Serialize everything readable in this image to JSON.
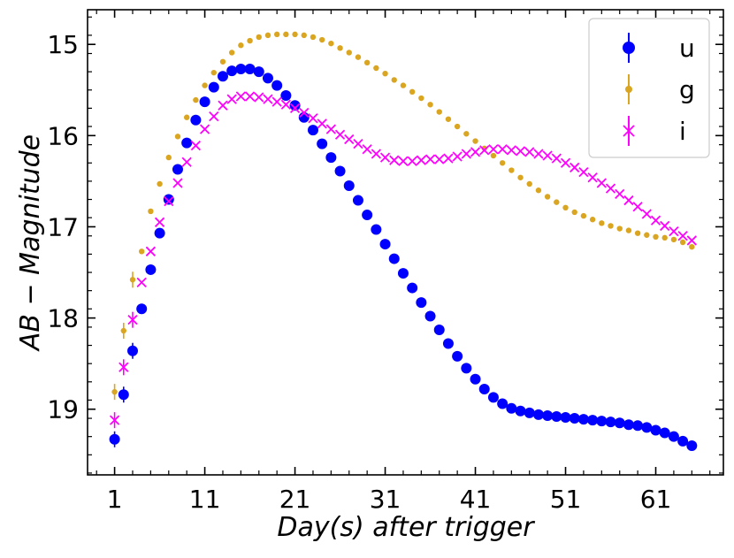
{
  "chart_data": {
    "type": "scatter",
    "xlabel": "Day(s) after trigger",
    "ylabel": "AB − Magnitude",
    "xlim": [
      -2.0,
      68.5
    ],
    "ylim": [
      19.72,
      14.62
    ],
    "y_inverted": true,
    "xticks": [
      1,
      11,
      21,
      31,
      41,
      51,
      61
    ],
    "xtick_labels": [
      "1",
      "11",
      "21",
      "31",
      "41",
      "51",
      "61"
    ],
    "yticks": [
      15,
      16,
      17,
      18,
      19
    ],
    "ytick_labels": [
      "15",
      "16",
      "17",
      "18",
      "19"
    ],
    "grid": false,
    "legend_position": "top-right",
    "series": [
      {
        "name": "u",
        "color": "#0000ff",
        "marker": "circle",
        "x": [
          1,
          2,
          3,
          4,
          5,
          6,
          7,
          8,
          9,
          10,
          11,
          12,
          13,
          14,
          15,
          16,
          17,
          18,
          19,
          20,
          21,
          22,
          23,
          24,
          25,
          26,
          27,
          28,
          29,
          30,
          31,
          32,
          33,
          34,
          35,
          36,
          37,
          38,
          39,
          40,
          41,
          42,
          43,
          44,
          45,
          46,
          47,
          48,
          49,
          50,
          51,
          52,
          53,
          54,
          55,
          56,
          57,
          58,
          59,
          60,
          61,
          62,
          63,
          64,
          65
        ],
        "y": [
          19.33,
          18.84,
          18.36,
          17.9,
          17.47,
          17.07,
          16.7,
          16.37,
          16.08,
          15.83,
          15.63,
          15.47,
          15.35,
          15.29,
          15.27,
          15.27,
          15.3,
          15.37,
          15.45,
          15.56,
          15.67,
          15.8,
          15.94,
          16.09,
          16.24,
          16.39,
          16.55,
          16.71,
          16.87,
          17.03,
          17.19,
          17.35,
          17.51,
          17.67,
          17.83,
          17.98,
          18.13,
          18.28,
          18.42,
          18.55,
          18.67,
          18.78,
          18.87,
          18.94,
          18.99,
          19.02,
          19.04,
          19.06,
          19.07,
          19.08,
          19.09,
          19.1,
          19.11,
          19.12,
          19.13,
          19.14,
          19.15,
          19.17,
          19.18,
          19.2,
          19.23,
          19.26,
          19.3,
          19.35,
          19.4
        ]
      },
      {
        "name": "g",
        "color": "#daa520",
        "marker": "small-circle",
        "x": [
          1,
          2,
          3,
          4,
          5,
          6,
          7,
          8,
          9,
          10,
          11,
          12,
          13,
          14,
          15,
          16,
          17,
          18,
          19,
          20,
          21,
          22,
          23,
          24,
          25,
          26,
          27,
          28,
          29,
          30,
          31,
          32,
          33,
          34,
          35,
          36,
          37,
          38,
          39,
          40,
          41,
          42,
          43,
          44,
          45,
          46,
          47,
          48,
          49,
          50,
          51,
          52,
          53,
          54,
          55,
          56,
          57,
          58,
          59,
          60,
          61,
          62,
          63,
          64,
          65
        ],
        "y": [
          18.81,
          18.14,
          17.58,
          17.27,
          16.83,
          16.53,
          16.24,
          16.01,
          15.8,
          15.61,
          15.45,
          15.31,
          15.19,
          15.09,
          15.01,
          14.96,
          14.92,
          14.9,
          14.89,
          14.89,
          14.89,
          14.9,
          14.92,
          14.95,
          14.99,
          15.04,
          15.09,
          15.14,
          15.2,
          15.26,
          15.32,
          15.39,
          15.45,
          15.52,
          15.59,
          15.66,
          15.74,
          15.82,
          15.9,
          15.98,
          16.06,
          16.14,
          16.22,
          16.3,
          16.38,
          16.46,
          16.53,
          16.6,
          16.67,
          16.73,
          16.79,
          16.84,
          16.88,
          16.92,
          16.96,
          16.99,
          17.02,
          17.04,
          17.07,
          17.09,
          17.11,
          17.12,
          17.14,
          17.17,
          17.22
        ]
      },
      {
        "name": "i",
        "color": "#ff00ff",
        "marker": "x",
        "x": [
          1,
          2,
          3,
          4,
          5,
          6,
          7,
          8,
          9,
          10,
          11,
          12,
          13,
          14,
          15,
          16,
          17,
          18,
          19,
          20,
          21,
          22,
          23,
          24,
          25,
          26,
          27,
          28,
          29,
          30,
          31,
          32,
          33,
          34,
          35,
          36,
          37,
          38,
          39,
          40,
          41,
          42,
          43,
          44,
          45,
          46,
          47,
          48,
          49,
          50,
          51,
          52,
          53,
          54,
          55,
          56,
          57,
          58,
          59,
          60,
          61,
          62,
          63,
          64,
          65
        ],
        "y": [
          19.12,
          18.54,
          18.02,
          17.61,
          17.27,
          16.95,
          16.72,
          16.52,
          16.29,
          16.11,
          15.93,
          15.79,
          15.67,
          15.6,
          15.57,
          15.57,
          15.58,
          15.6,
          15.63,
          15.66,
          15.7,
          15.75,
          15.81,
          15.87,
          15.93,
          15.99,
          16.04,
          16.09,
          16.15,
          16.2,
          16.24,
          16.27,
          16.28,
          16.28,
          16.27,
          16.26,
          16.26,
          16.25,
          16.23,
          16.2,
          16.18,
          16.16,
          16.15,
          16.15,
          16.16,
          16.17,
          16.18,
          16.2,
          16.22,
          16.25,
          16.3,
          16.35,
          16.4,
          16.46,
          16.52,
          16.58,
          16.64,
          16.71,
          16.78,
          16.86,
          16.93,
          16.99,
          17.05,
          17.1,
          17.15
        ]
      }
    ]
  }
}
